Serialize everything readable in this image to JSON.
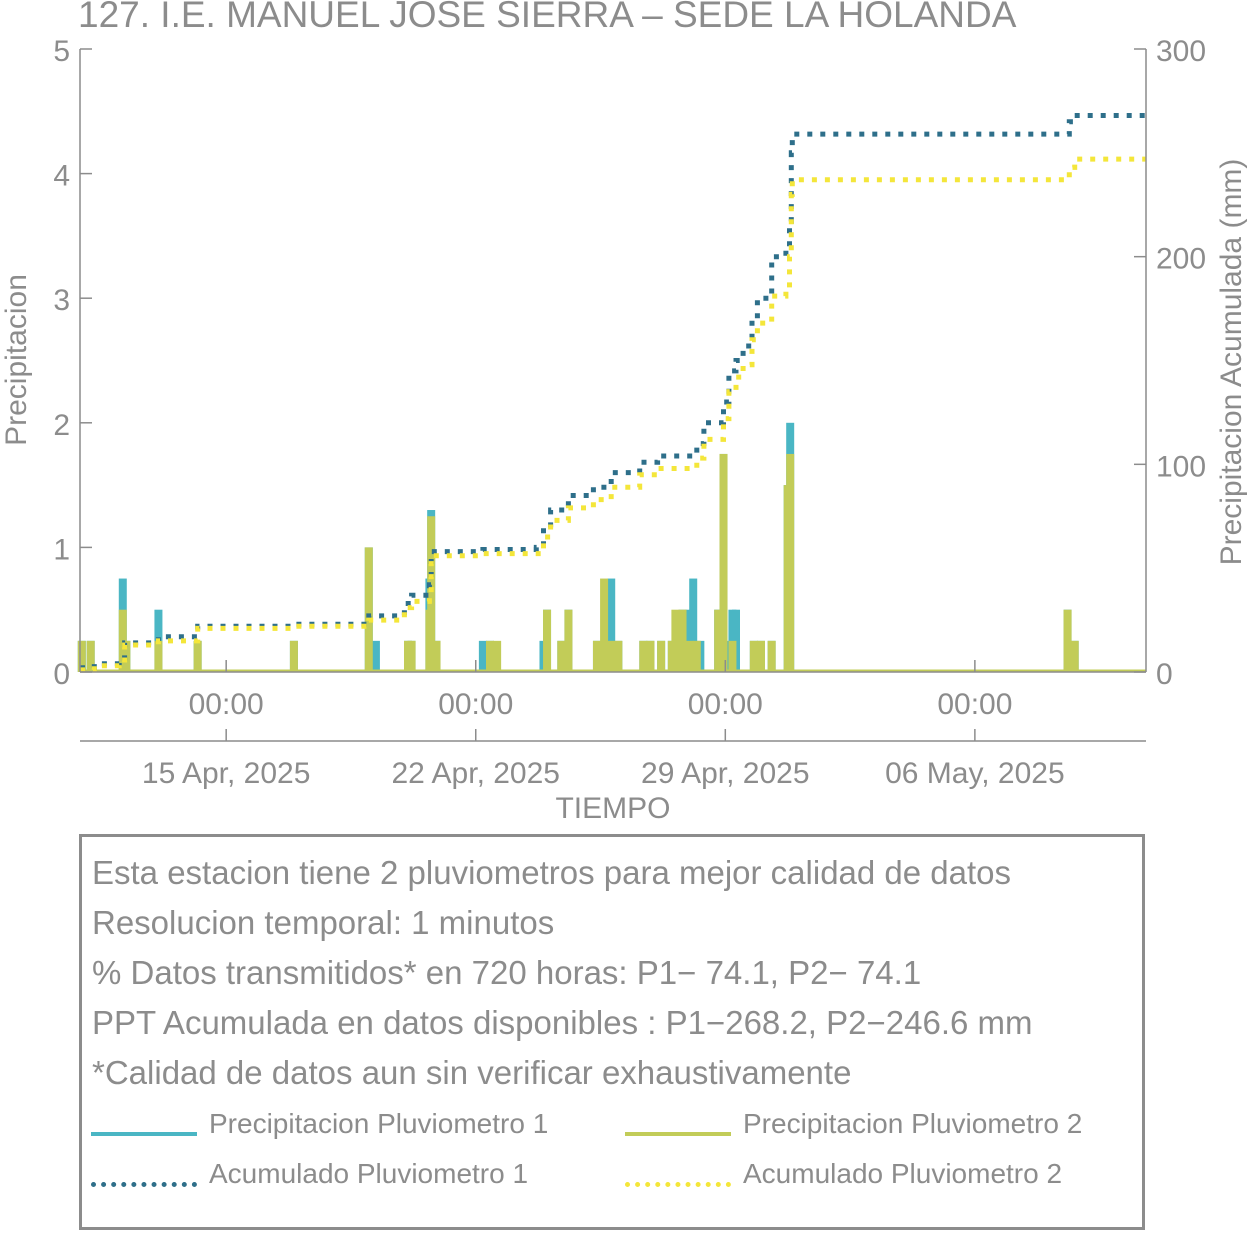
{
  "title": "127. I.E. MANUEL JOSE SIERRA – SEDE LA HOLANDA",
  "chart_data": {
    "type": "line",
    "title": "127. I.E. MANUEL JOSE SIERRA – SEDE LA HOLANDA",
    "xlabel": "TIEMPO",
    "ylabel": "Precipitacion",
    "y2label": "Precipitacion Acumulada (mm)",
    "x_unit": "days since 2025-04-11 00:00",
    "xlim": [
      0.0,
      29.9
    ],
    "ylim": [
      0,
      5
    ],
    "y2lim": [
      0,
      300
    ],
    "x_ticks": [
      4.1,
      11.1,
      18.1,
      25.1
    ],
    "x_tick_time_labels": [
      "00:00",
      "00:00",
      "00:00",
      "00:00"
    ],
    "x_tick_date_labels": [
      "15 Apr, 2025",
      "22 Apr, 2025",
      "29 Apr, 2025",
      "06 May, 2025"
    ],
    "y_ticks": [
      0,
      1,
      2,
      3,
      4,
      5
    ],
    "y2_ticks": [
      0,
      100,
      200,
      300
    ],
    "grid": false,
    "series": [
      {
        "name": "Precipitacion Pluviometro 1",
        "axis": "left",
        "style": "solid",
        "color": "#4ab6c4",
        "points": [
          [
            0.05,
            0.25
          ],
          [
            0.3,
            0.25
          ],
          [
            1.2,
            0.75
          ],
          [
            1.3,
            0.25
          ],
          [
            2.2,
            0.5
          ],
          [
            3.3,
            0.25
          ],
          [
            6.0,
            0.25
          ],
          [
            8.1,
            1.0
          ],
          [
            8.3,
            0.25
          ],
          [
            9.2,
            0.25
          ],
          [
            9.3,
            0.25
          ],
          [
            9.8,
            0.75
          ],
          [
            9.85,
            1.3
          ],
          [
            10.0,
            0.25
          ],
          [
            11.3,
            0.25
          ],
          [
            11.5,
            0.25
          ],
          [
            13.0,
            0.25
          ],
          [
            13.1,
            0.5
          ],
          [
            13.5,
            0.25
          ],
          [
            13.7,
            0.5
          ],
          [
            14.5,
            0.25
          ],
          [
            14.9,
            0.75
          ],
          [
            15.1,
            0.25
          ],
          [
            15.8,
            0.25
          ],
          [
            16.0,
            0.25
          ],
          [
            16.3,
            0.25
          ],
          [
            16.6,
            0.25
          ],
          [
            16.9,
            0.5
          ],
          [
            17.1,
            0.5
          ],
          [
            17.2,
            0.75
          ],
          [
            17.4,
            0.25
          ],
          [
            17.9,
            0.5
          ],
          [
            18.05,
            1.75
          ],
          [
            18.2,
            0.25
          ],
          [
            18.3,
            0.5
          ],
          [
            18.4,
            0.5
          ],
          [
            18.9,
            0.25
          ],
          [
            19.1,
            0.25
          ],
          [
            19.4,
            0.25
          ],
          [
            19.85,
            1.5
          ],
          [
            19.92,
            2.0
          ],
          [
            27.7,
            0.5
          ],
          [
            27.9,
            0.25
          ]
        ]
      },
      {
        "name": "Precipitacion Pluviometro 2",
        "axis": "left",
        "style": "solid",
        "color": "#c2cc58",
        "points": [
          [
            0.05,
            0.25
          ],
          [
            0.3,
            0.25
          ],
          [
            1.2,
            0.5
          ],
          [
            1.3,
            0.25
          ],
          [
            2.2,
            0.25
          ],
          [
            3.3,
            0.25
          ],
          [
            6.0,
            0.25
          ],
          [
            8.1,
            1.0
          ],
          [
            9.2,
            0.25
          ],
          [
            9.3,
            0.25
          ],
          [
            9.8,
            0.5
          ],
          [
            9.85,
            1.25
          ],
          [
            10.0,
            0.25
          ],
          [
            11.5,
            0.25
          ],
          [
            11.7,
            0.25
          ],
          [
            13.1,
            0.5
          ],
          [
            13.5,
            0.25
          ],
          [
            13.7,
            0.5
          ],
          [
            14.5,
            0.25
          ],
          [
            14.7,
            0.75
          ],
          [
            14.9,
            0.25
          ],
          [
            15.1,
            0.25
          ],
          [
            15.8,
            0.25
          ],
          [
            16.0,
            0.25
          ],
          [
            16.3,
            0.25
          ],
          [
            16.6,
            0.25
          ],
          [
            16.7,
            0.5
          ],
          [
            16.9,
            0.5
          ],
          [
            17.1,
            0.25
          ],
          [
            17.3,
            0.25
          ],
          [
            17.9,
            0.5
          ],
          [
            18.05,
            1.75
          ],
          [
            18.3,
            0.25
          ],
          [
            18.9,
            0.25
          ],
          [
            19.1,
            0.25
          ],
          [
            19.4,
            0.25
          ],
          [
            19.85,
            1.5
          ],
          [
            19.92,
            1.75
          ],
          [
            27.7,
            0.5
          ],
          [
            27.9,
            0.25
          ]
        ]
      },
      {
        "name": "Acumulado Pluviometro 1",
        "axis": "right",
        "style": "dotted",
        "color": "#2e6f8a",
        "points": [
          [
            0.0,
            2
          ],
          [
            0.4,
            4
          ],
          [
            1.1,
            5
          ],
          [
            1.25,
            14
          ],
          [
            2.2,
            17
          ],
          [
            3.3,
            22
          ],
          [
            6.0,
            23
          ],
          [
            8.1,
            27
          ],
          [
            9.1,
            33
          ],
          [
            9.3,
            37
          ],
          [
            9.8,
            42
          ],
          [
            9.85,
            58
          ],
          [
            11.3,
            59
          ],
          [
            12.8,
            60
          ],
          [
            13.0,
            68
          ],
          [
            13.2,
            78
          ],
          [
            13.7,
            85
          ],
          [
            14.4,
            89
          ],
          [
            14.9,
            96
          ],
          [
            15.7,
            101
          ],
          [
            16.2,
            104
          ],
          [
            17.3,
            110
          ],
          [
            17.5,
            120
          ],
          [
            18.05,
            130
          ],
          [
            18.2,
            145
          ],
          [
            18.4,
            150
          ],
          [
            18.6,
            157
          ],
          [
            18.85,
            170
          ],
          [
            19.0,
            180
          ],
          [
            19.4,
            200
          ],
          [
            19.8,
            203
          ],
          [
            19.9,
            217
          ],
          [
            19.95,
            250
          ],
          [
            19.98,
            259
          ],
          [
            27.6,
            259
          ],
          [
            27.75,
            265
          ],
          [
            27.9,
            268
          ],
          [
            29.9,
            268
          ]
        ]
      },
      {
        "name": "Acumulado Pluviometro 2",
        "axis": "right",
        "style": "dotted",
        "color": "#f4e63a",
        "points": [
          [
            0.0,
            1
          ],
          [
            0.4,
            3
          ],
          [
            1.1,
            4
          ],
          [
            1.25,
            13
          ],
          [
            2.2,
            15
          ],
          [
            3.3,
            21
          ],
          [
            6.0,
            22
          ],
          [
            8.1,
            25
          ],
          [
            9.1,
            31
          ],
          [
            9.3,
            34
          ],
          [
            9.8,
            38
          ],
          [
            9.85,
            56
          ],
          [
            11.3,
            57
          ],
          [
            12.8,
            57
          ],
          [
            13.0,
            65
          ],
          [
            13.2,
            73
          ],
          [
            13.7,
            79
          ],
          [
            14.4,
            83
          ],
          [
            14.9,
            89
          ],
          [
            15.7,
            95
          ],
          [
            16.2,
            98
          ],
          [
            17.3,
            103
          ],
          [
            17.5,
            112
          ],
          [
            18.05,
            122
          ],
          [
            18.2,
            135
          ],
          [
            18.4,
            142
          ],
          [
            18.6,
            148
          ],
          [
            18.85,
            160
          ],
          [
            19.0,
            168
          ],
          [
            19.4,
            181
          ],
          [
            19.8,
            184
          ],
          [
            19.9,
            200
          ],
          [
            19.95,
            230
          ],
          [
            19.98,
            237
          ],
          [
            27.6,
            237
          ],
          [
            27.75,
            243
          ],
          [
            27.9,
            247
          ],
          [
            29.9,
            247
          ]
        ]
      }
    ]
  },
  "notes": [
    "Esta estacion tiene 2 pluviometros para mejor calidad de datos",
    "Resolucion temporal: 1 minutos",
    "% Datos transmitidos* en 720 horas: P1− 74.1, P2− 74.1",
    "PPT Acumulada en datos disponibles : P1−268.2, P2−246.6 mm",
    "*Calidad de datos aun sin verificar exhaustivamente"
  ],
  "legend": {
    "p1": "Precipitacion Pluviometro 1",
    "p2": "Precipitacion Pluviometro 2",
    "a1": "Acumulado Pluviometro 1",
    "a2": "Acumulado Pluviometro 2"
  },
  "colors": {
    "p1": "#4ab6c4",
    "p2": "#c2cc58",
    "a1": "#2e6f8a",
    "a2": "#f4e63a",
    "axis": "#8c8c8c"
  }
}
